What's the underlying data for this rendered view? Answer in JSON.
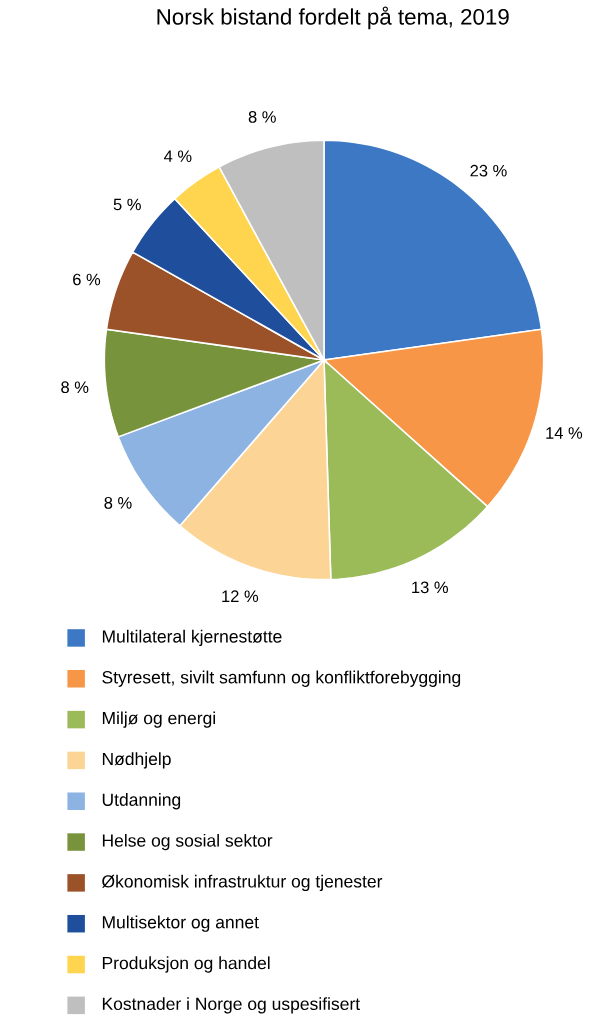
{
  "chart_data": {
    "type": "pie",
    "title": "Norsk bistand fordelt på tema, 2019",
    "categories": [
      "Multilateral kjernestøtte",
      "Styresett, sivilt samfunn og konfliktforebygging",
      "Miljø og energi",
      "Nødhjelp",
      "Utdanning",
      "Helse og sosial sektor",
      "Økonomisk infrastruktur og tjenester",
      "Multisektor og annet",
      "Produksjon og handel",
      "Kostnader i Norge og uspesifisert"
    ],
    "values": [
      23,
      14,
      13,
      12,
      8,
      8,
      6,
      5,
      4,
      8
    ],
    "value_labels": [
      "23 %",
      "14 %",
      "13 %",
      "12 %",
      "8 %",
      "8 %",
      "6 %",
      "5 %",
      "4 %",
      "8 %"
    ],
    "colors": [
      "#3d78c4",
      "#f79646",
      "#9bbb59",
      "#fcd596",
      "#8db3e2",
      "#77933c",
      "#9c5228",
      "#1f4e9c",
      "#ffd54f",
      "#bfbfbf"
    ],
    "legend": "bottom"
  }
}
